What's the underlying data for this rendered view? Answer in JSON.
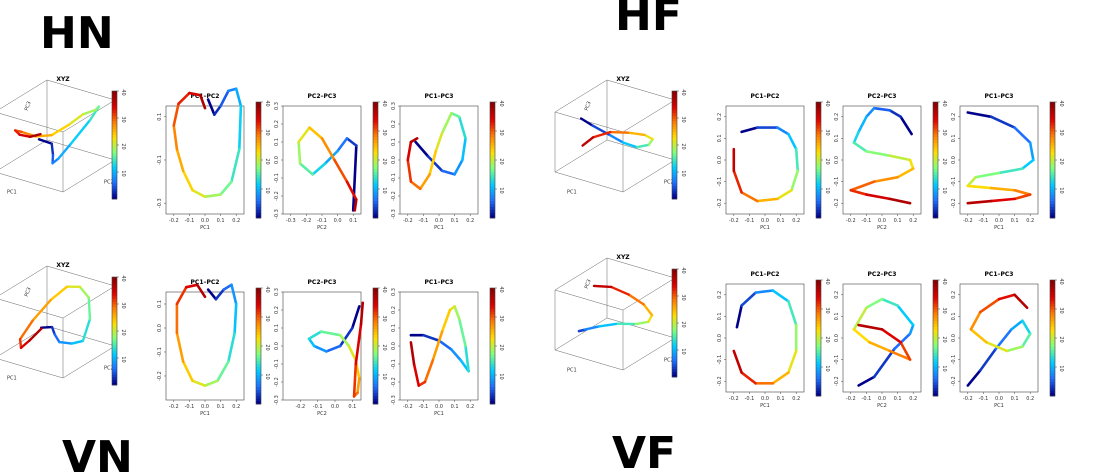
{
  "colorbar": {
    "ticks": [
      "10",
      "20",
      "30",
      "40"
    ],
    "range": [
      0,
      40
    ],
    "colors": [
      "#00008b",
      "#1e6fff",
      "#00ccff",
      "#7fff7f",
      "#ffdd00",
      "#ff7f00",
      "#e00000",
      "#8b0000"
    ]
  },
  "panels": [
    {
      "label": "HN",
      "titles": [
        "XYZ",
        "PC1–PC2",
        "PC2–PC3",
        "PC1–PC3"
      ],
      "cube_axes": [
        "PC1",
        "PC2",
        "PC3"
      ],
      "pc_axes": {
        "pc1": {
          "ticks": [
            "-0.2",
            "-0.1",
            "0.0",
            "0.1",
            "0.2"
          ],
          "range": [
            -0.25,
            0.25
          ]
        },
        "pc2": {
          "ticks": [
            "-0.3",
            "-0.2",
            "-0.1",
            "0.0",
            "0.1"
          ],
          "range": [
            -0.35,
            0.15
          ]
        },
        "pc3": {
          "ticks": [
            "-0.3",
            "-0.2",
            "-0.1",
            "0.0",
            "0.1",
            "0.2",
            "0.3"
          ],
          "range": [
            -0.3,
            0.3
          ]
        },
        "pc2y": {
          "ticks": [
            "-0.3",
            "-0.1",
            "0.1"
          ],
          "range": [
            -0.35,
            0.15
          ]
        }
      }
    },
    {
      "label": "HF",
      "titles": [
        "XYZ",
        "PC1–PC2",
        "PC2–PC3",
        "PC1–PC3"
      ],
      "cube_axes": [
        "PC1",
        "PC2",
        "PC3"
      ],
      "pc_axes": {
        "pc1": {
          "ticks": [
            "-0.2",
            "-0.1",
            "0.0",
            "0.1",
            "0.2"
          ],
          "range": [
            -0.25,
            0.25
          ]
        },
        "pc2": {
          "ticks": [
            "-0.2",
            "-0.1",
            "0.0",
            "0.1",
            "0.2"
          ],
          "range": [
            -0.25,
            0.25
          ]
        },
        "pc3": {
          "ticks": [
            "-0.2",
            "-0.1",
            "0.0",
            "0.1",
            "0.2"
          ],
          "range": [
            -0.25,
            0.25
          ]
        },
        "pc2y": {
          "ticks": [
            "-0.2",
            "-0.1",
            "0.0",
            "0.1",
            "0.2"
          ],
          "range": [
            -0.25,
            0.25
          ]
        }
      }
    },
    {
      "label": "VN",
      "titles": [
        "XYZ",
        "PC1–PC2",
        "PC2–PC3",
        "PC1–PC3"
      ],
      "cube_axes": [
        "PC1",
        "PC2",
        "PC3"
      ],
      "pc_axes": {
        "pc1": {
          "ticks": [
            "-0.2",
            "-0.1",
            "0.0",
            "0.1",
            "0.2"
          ],
          "range": [
            -0.25,
            0.25
          ]
        },
        "pc2": {
          "ticks": [
            "-0.2",
            "-0.1",
            "0.0",
            "0.1"
          ],
          "range": [
            -0.3,
            0.15
          ]
        },
        "pc3": {
          "ticks": [
            "-0.3",
            "-0.2",
            "-0.1",
            "0.0",
            "0.1",
            "0.2",
            "0.3"
          ],
          "range": [
            -0.3,
            0.3
          ]
        },
        "pc2y": {
          "ticks": [
            "-0.2",
            "-0.1",
            "0.0",
            "0.1"
          ],
          "range": [
            -0.3,
            0.15
          ]
        }
      }
    },
    {
      "label": "VF",
      "titles": [
        "XYZ",
        "PC1–PC2",
        "PC2–PC3",
        "PC1–PC3"
      ],
      "cube_axes": [
        "PC1",
        "PC2",
        "PC3"
      ],
      "pc_axes": {
        "pc1": {
          "ticks": [
            "-0.2",
            "-0.1",
            "0.0",
            "0.1",
            "0.2"
          ],
          "range": [
            -0.25,
            0.25
          ]
        },
        "pc2": {
          "ticks": [
            "-0.2",
            "-0.1",
            "0.0",
            "0.1",
            "0.2"
          ],
          "range": [
            -0.25,
            0.25
          ]
        },
        "pc3": {
          "ticks": [
            "-0.2",
            "-0.1",
            "0.0",
            "0.1",
            "0.2"
          ],
          "range": [
            -0.25,
            0.25
          ]
        },
        "pc2y": {
          "ticks": [
            "-0.2",
            "-0.1",
            "0.0",
            "0.1",
            "0.2"
          ],
          "range": [
            -0.25,
            0.25
          ]
        }
      }
    }
  ],
  "chart_data": {
    "type": "line",
    "color_scale": "time 0–40, blue to red",
    "grid": false,
    "trajectories": {
      "HN": {
        "pc12": [
          [
            0.02,
            0.18
          ],
          [
            0.06,
            0.11
          ],
          [
            0.1,
            0.15
          ],
          [
            0.15,
            0.22
          ],
          [
            0.2,
            0.23
          ],
          [
            0.23,
            0.15
          ],
          [
            0.22,
            -0.05
          ],
          [
            0.17,
            -0.2
          ],
          [
            0.1,
            -0.26
          ],
          [
            0.0,
            -0.27
          ],
          [
            -0.08,
            -0.24
          ],
          [
            -0.14,
            -0.15
          ],
          [
            -0.18,
            -0.05
          ],
          [
            -0.2,
            0.06
          ],
          [
            -0.17,
            0.16
          ],
          [
            -0.1,
            0.21
          ],
          [
            -0.03,
            0.2
          ],
          [
            0.0,
            0.14
          ]
        ],
        "pc23": [
          [
            0.1,
            -0.28
          ],
          [
            0.12,
            0.08
          ],
          [
            0.06,
            0.12
          ],
          [
            0.0,
            0.05
          ],
          [
            -0.08,
            -0.02
          ],
          [
            -0.16,
            -0.08
          ],
          [
            -0.24,
            -0.02
          ],
          [
            -0.25,
            0.1
          ],
          [
            -0.18,
            0.18
          ],
          [
            -0.1,
            0.12
          ],
          [
            -0.02,
            0.0
          ],
          [
            0.06,
            -0.12
          ],
          [
            0.12,
            -0.22
          ],
          [
            0.11,
            -0.28
          ]
        ],
        "pc13": [
          [
            -0.15,
            0.1
          ],
          [
            -0.07,
            0.02
          ],
          [
            0.02,
            -0.06
          ],
          [
            0.1,
            -0.08
          ],
          [
            0.15,
            0.0
          ],
          [
            0.17,
            0.12
          ],
          [
            0.13,
            0.24
          ],
          [
            0.08,
            0.26
          ],
          [
            0.02,
            0.15
          ],
          [
            -0.02,
            0.05
          ],
          [
            -0.06,
            -0.08
          ],
          [
            -0.12,
            -0.16
          ],
          [
            -0.18,
            -0.12
          ],
          [
            -0.2,
            0.0
          ],
          [
            -0.18,
            0.1
          ],
          [
            -0.14,
            0.12
          ]
        ]
      },
      "HF": {
        "pc12": [
          [
            -0.15,
            0.13
          ],
          [
            -0.05,
            0.15
          ],
          [
            0.08,
            0.15
          ],
          [
            0.15,
            0.12
          ],
          [
            0.2,
            0.05
          ],
          [
            0.21,
            -0.05
          ],
          [
            0.17,
            -0.14
          ],
          [
            0.08,
            -0.18
          ],
          [
            -0.05,
            -0.19
          ],
          [
            -0.15,
            -0.15
          ],
          [
            -0.2,
            -0.05
          ],
          [
            -0.2,
            0.05
          ]
        ],
        "pc23": [
          [
            0.19,
            0.12
          ],
          [
            0.12,
            0.2
          ],
          [
            0.05,
            0.23
          ],
          [
            -0.05,
            0.24
          ],
          [
            -0.1,
            0.2
          ],
          [
            -0.15,
            0.13
          ],
          [
            -0.18,
            0.08
          ],
          [
            -0.1,
            0.04
          ],
          [
            0.05,
            0.02
          ],
          [
            0.18,
            0.0
          ],
          [
            0.2,
            -0.04
          ],
          [
            0.1,
            -0.08
          ],
          [
            -0.05,
            -0.1
          ],
          [
            -0.2,
            -0.14
          ],
          [
            -0.1,
            -0.16
          ],
          [
            0.05,
            -0.18
          ],
          [
            0.18,
            -0.2
          ]
        ],
        "pc13": [
          [
            -0.2,
            0.22
          ],
          [
            -0.05,
            0.2
          ],
          [
            0.1,
            0.15
          ],
          [
            0.2,
            0.08
          ],
          [
            0.22,
            0.0
          ],
          [
            0.15,
            -0.04
          ],
          [
            0.0,
            -0.06
          ],
          [
            -0.15,
            -0.08
          ],
          [
            -0.2,
            -0.12
          ],
          [
            -0.05,
            -0.13
          ],
          [
            0.1,
            -0.14
          ],
          [
            0.2,
            -0.16
          ],
          [
            0.1,
            -0.18
          ],
          [
            -0.05,
            -0.19
          ],
          [
            -0.2,
            -0.2
          ]
        ]
      },
      "VN": {
        "pc12": [
          [
            0.02,
            0.16
          ],
          [
            0.07,
            0.12
          ],
          [
            0.12,
            0.16
          ],
          [
            0.17,
            0.18
          ],
          [
            0.2,
            0.1
          ],
          [
            0.19,
            -0.02
          ],
          [
            0.15,
            -0.14
          ],
          [
            0.08,
            -0.22
          ],
          [
            0.0,
            -0.24
          ],
          [
            -0.08,
            -0.22
          ],
          [
            -0.14,
            -0.14
          ],
          [
            -0.18,
            -0.02
          ],
          [
            -0.18,
            0.1
          ],
          [
            -0.12,
            0.17
          ],
          [
            -0.05,
            0.18
          ],
          [
            0.0,
            0.13
          ]
        ],
        "pc23": [
          [
            0.14,
            0.22
          ],
          [
            0.1,
            0.1
          ],
          [
            0.03,
            0.0
          ],
          [
            -0.05,
            -0.03
          ],
          [
            -0.12,
            0.0
          ],
          [
            -0.15,
            0.04
          ],
          [
            -0.08,
            0.08
          ],
          [
            0.03,
            0.06
          ],
          [
            0.08,
            0.0
          ],
          [
            0.12,
            -0.08
          ],
          [
            0.14,
            -0.18
          ],
          [
            0.13,
            -0.26
          ],
          [
            0.11,
            -0.28
          ],
          [
            0.12,
            -0.1
          ],
          [
            0.15,
            0.12
          ],
          [
            0.16,
            0.24
          ]
        ],
        "pc13": [
          [
            -0.18,
            0.06
          ],
          [
            -0.1,
            0.06
          ],
          [
            0.0,
            0.03
          ],
          [
            0.08,
            -0.02
          ],
          [
            0.14,
            -0.08
          ],
          [
            0.19,
            -0.14
          ],
          [
            0.17,
            0.0
          ],
          [
            0.13,
            0.15
          ],
          [
            0.1,
            0.22
          ],
          [
            0.07,
            0.2
          ],
          [
            0.02,
            0.08
          ],
          [
            -0.04,
            -0.08
          ],
          [
            -0.09,
            -0.2
          ],
          [
            -0.13,
            -0.22
          ],
          [
            -0.16,
            -0.1
          ],
          [
            -0.18,
            0.02
          ]
        ]
      },
      "VF": {
        "pc12": [
          [
            -0.18,
            0.05
          ],
          [
            -0.15,
            0.15
          ],
          [
            -0.06,
            0.21
          ],
          [
            0.05,
            0.22
          ],
          [
            0.15,
            0.17
          ],
          [
            0.2,
            0.06
          ],
          [
            0.2,
            -0.06
          ],
          [
            0.15,
            -0.16
          ],
          [
            0.05,
            -0.21
          ],
          [
            -0.06,
            -0.21
          ],
          [
            -0.15,
            -0.16
          ],
          [
            -0.2,
            -0.06
          ]
        ],
        "pc23": [
          [
            -0.15,
            -0.22
          ],
          [
            -0.05,
            -0.18
          ],
          [
            0.08,
            -0.05
          ],
          [
            0.18,
            0.02
          ],
          [
            0.2,
            0.06
          ],
          [
            0.1,
            0.15
          ],
          [
            0.0,
            0.18
          ],
          [
            -0.1,
            0.14
          ],
          [
            -0.18,
            0.04
          ],
          [
            -0.08,
            -0.02
          ],
          [
            0.05,
            -0.06
          ],
          [
            0.18,
            -0.1
          ],
          [
            0.12,
            -0.02
          ],
          [
            0.0,
            0.04
          ],
          [
            -0.15,
            0.06
          ]
        ],
        "pc13": [
          [
            -0.2,
            -0.22
          ],
          [
            -0.12,
            -0.15
          ],
          [
            -0.02,
            -0.05
          ],
          [
            0.08,
            0.04
          ],
          [
            0.15,
            0.08
          ],
          [
            0.2,
            0.02
          ],
          [
            0.15,
            -0.04
          ],
          [
            0.05,
            -0.06
          ],
          [
            -0.08,
            -0.02
          ],
          [
            -0.18,
            0.04
          ],
          [
            -0.12,
            0.12
          ],
          [
            0.0,
            0.18
          ],
          [
            0.1,
            0.2
          ],
          [
            0.18,
            0.14
          ]
        ]
      }
    }
  }
}
